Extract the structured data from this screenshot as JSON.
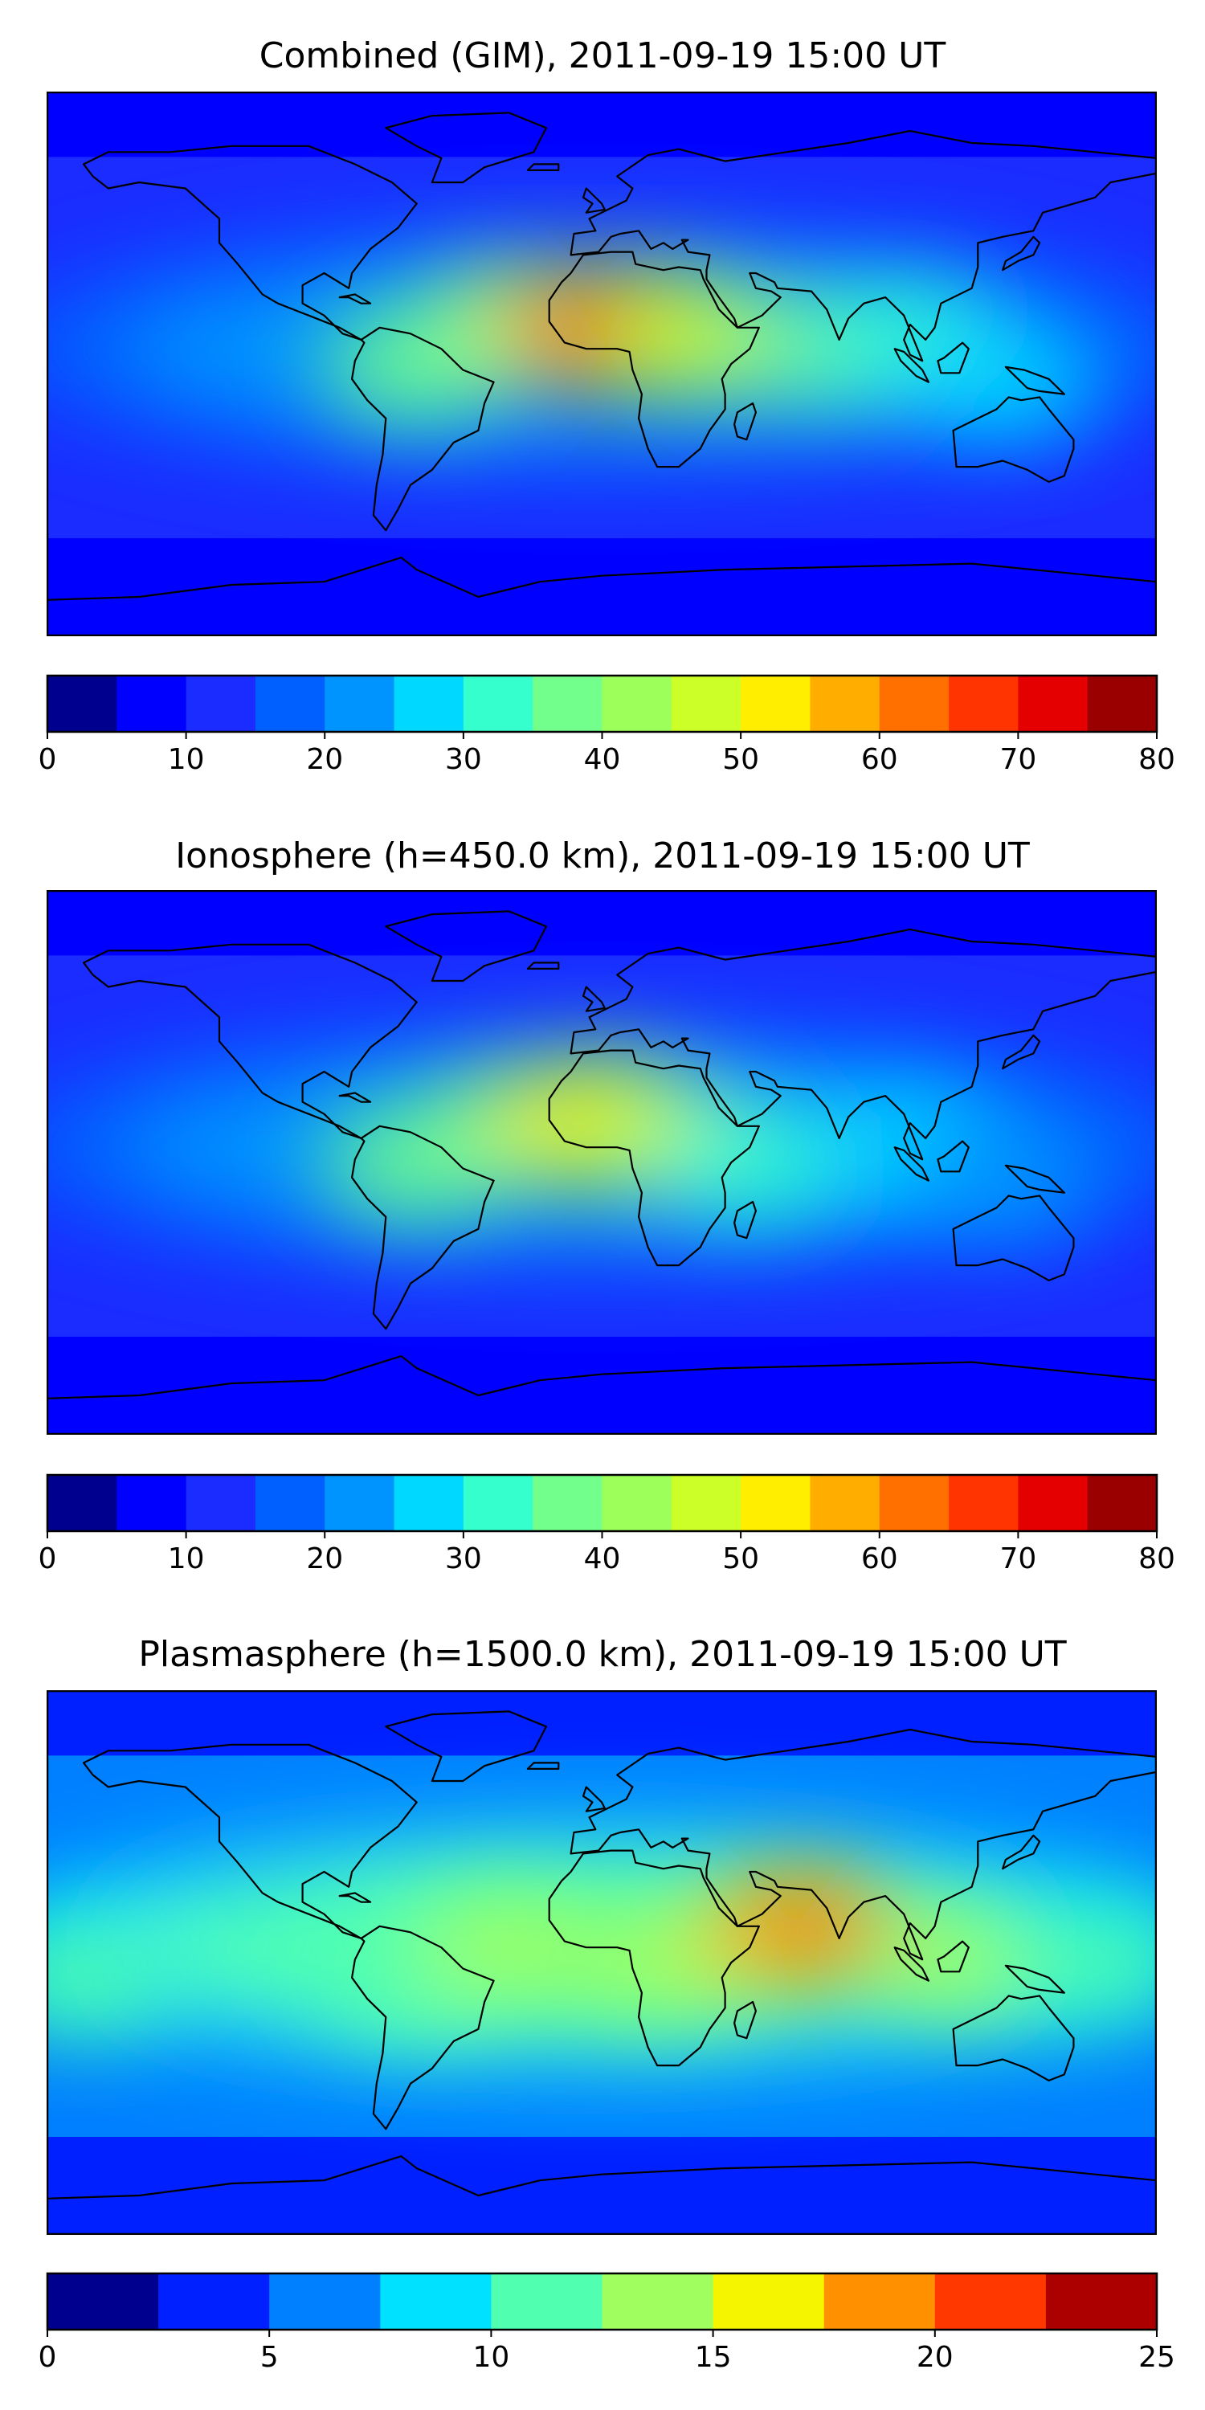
{
  "panels": [
    {
      "title": "Combined (GIM), 2011-09-19 15:00 UT",
      "colorbar": {
        "min": 0,
        "max": 80,
        "step": 5,
        "ticks": [
          0,
          10,
          20,
          30,
          40,
          50,
          60,
          70,
          80
        ]
      },
      "field_blobs": [
        {
          "lon": -30,
          "lat": 12,
          "level": 8
        },
        {
          "lon": -20,
          "lat": 12,
          "level": 9
        },
        {
          "lon": -10,
          "lat": 11,
          "level": 10
        },
        {
          "lon": 0,
          "lat": 12,
          "level": 11
        },
        {
          "lon": 10,
          "lat": 13,
          "level": 12
        },
        {
          "lon": 5,
          "lat": 10,
          "level": 13
        },
        {
          "lon": 20,
          "lat": 10,
          "level": 11
        },
        {
          "lon": 35,
          "lat": 8,
          "level": 9
        },
        {
          "lon": -60,
          "lat": 0,
          "level": 7
        },
        {
          "lon": 75,
          "lat": 5,
          "level": 7
        },
        {
          "lon": 100,
          "lat": 8,
          "level": 6
        },
        {
          "lon": 130,
          "lat": -5,
          "level": 5
        }
      ]
    },
    {
      "title": "Ionosphere  (h=450.0 km), 2011-09-19 15:00 UT",
      "colorbar": {
        "min": 0,
        "max": 80,
        "step": 5,
        "ticks": [
          0,
          10,
          20,
          30,
          40,
          50,
          60,
          70,
          80
        ]
      },
      "field_blobs": [
        {
          "lon": -30,
          "lat": 10,
          "level": 8
        },
        {
          "lon": -15,
          "lat": 12,
          "level": 9
        },
        {
          "lon": 0,
          "lat": 15,
          "level": 10
        },
        {
          "lon": 5,
          "lat": 12,
          "level": 10
        },
        {
          "lon": 20,
          "lat": 8,
          "level": 9
        },
        {
          "lon": -60,
          "lat": 0,
          "level": 7
        },
        {
          "lon": 50,
          "lat": 0,
          "level": 6
        },
        {
          "lon": 100,
          "lat": 5,
          "level": 5
        },
        {
          "lon": 130,
          "lat": -5,
          "level": 4
        }
      ]
    },
    {
      "title": "Plasmasphere (h=1500.0 km), 2011-09-19 15:00 UT",
      "colorbar": {
        "min": 0,
        "max": 25,
        "step": 2.5,
        "ticks": [
          0,
          5,
          10,
          15,
          20,
          25
        ]
      },
      "field_blobs": [
        {
          "lon": -170,
          "lat": -5,
          "level": 4
        },
        {
          "lon": -60,
          "lat": -5,
          "level": 4
        },
        {
          "lon": -30,
          "lat": 5,
          "level": 5
        },
        {
          "lon": 20,
          "lat": 0,
          "level": 5
        },
        {
          "lon": 60,
          "lat": 10,
          "level": 6
        },
        {
          "lon": 65,
          "lat": 12,
          "level": 7
        },
        {
          "lon": 120,
          "lat": 0,
          "level": 5
        },
        {
          "lon": 160,
          "lat": 0,
          "level": 4
        }
      ]
    }
  ],
  "colormap": [
    "#00008f",
    "#0000ff",
    "#1a2cff",
    "#0060ff",
    "#0094ff",
    "#00d8ff",
    "#35ffcc",
    "#72ff8c",
    "#9cff5a",
    "#ccff28",
    "#ffee00",
    "#ffae00",
    "#ff7000",
    "#ff3400",
    "#e40000",
    "#9a0000"
  ],
  "colormap_plasma": [
    "#00008f",
    "#0020ff",
    "#0080ff",
    "#00e0ff",
    "#50ffaf",
    "#a0ff5f",
    "#f5f500",
    "#ff9000",
    "#ff3800",
    "#ac0000"
  ]
}
